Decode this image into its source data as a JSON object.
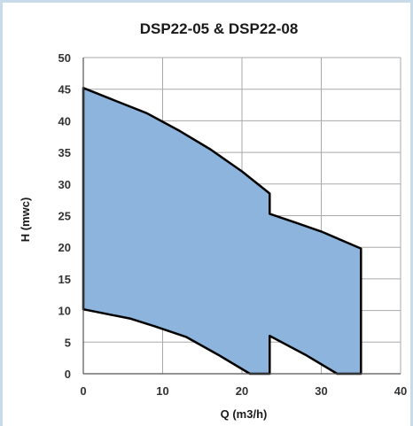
{
  "chart_data": {
    "type": "area",
    "title": "DSP22-05 & DSP22-08",
    "xlabel": "Q (m3/h)",
    "ylabel": "H (mwc)",
    "xlim": [
      0,
      40
    ],
    "ylim": [
      0,
      50
    ],
    "x_ticks": [
      0,
      10,
      20,
      30,
      40
    ],
    "y_ticks": [
      0,
      5,
      10,
      15,
      20,
      25,
      30,
      35,
      40,
      45,
      50
    ],
    "grid": true,
    "fill_color": "#8db4dc",
    "outline_color": "#000000",
    "series": [
      {
        "values": [
          [
            0,
            45.2
          ],
          [
            4,
            43.2
          ],
          [
            8,
            41.2
          ],
          [
            12,
            38.5
          ],
          [
            16,
            35.5
          ],
          [
            20,
            32
          ],
          [
            23.5,
            28.5
          ],
          [
            23.5,
            25.3
          ],
          [
            27,
            23.8
          ],
          [
            30,
            22.5
          ],
          [
            35,
            19.8
          ],
          [
            35,
            0
          ],
          [
            32,
            0
          ],
          [
            28,
            3
          ],
          [
            23.5,
            6
          ],
          [
            23.5,
            0
          ],
          [
            21,
            0
          ],
          [
            17,
            3
          ],
          [
            13,
            5.8
          ],
          [
            9,
            7.5
          ],
          [
            6,
            8.7
          ],
          [
            0,
            10.2
          ]
        ]
      }
    ]
  }
}
